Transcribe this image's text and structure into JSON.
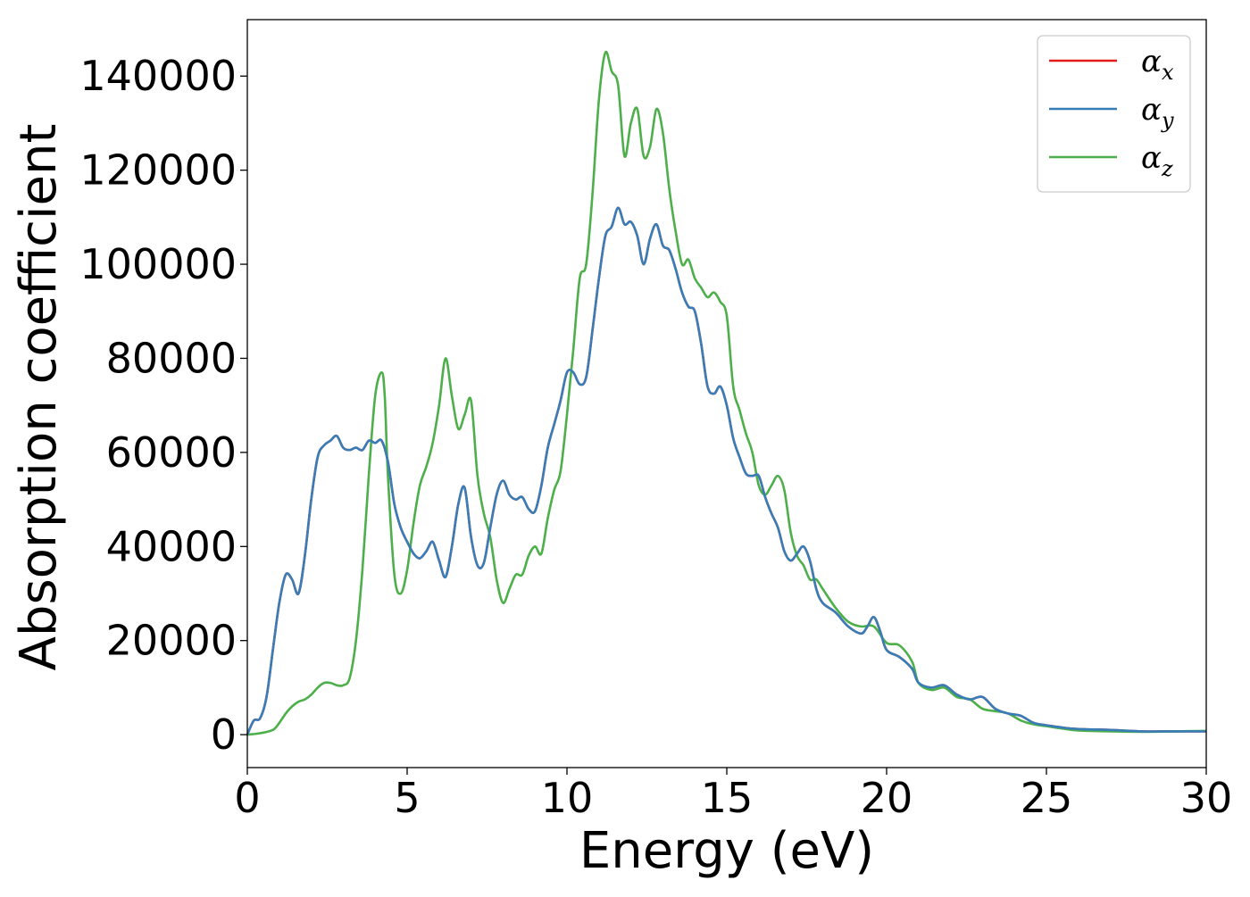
{
  "chart_data": {
    "type": "line",
    "xlabel": "Energy (eV)",
    "ylabel": "Absorption coefficient",
    "xlim": [
      0,
      30
    ],
    "ylim": [
      -7000,
      152000
    ],
    "xticks": [
      0,
      5,
      10,
      15,
      20,
      25,
      30
    ],
    "yticks": [
      0,
      20000,
      40000,
      60000,
      80000,
      100000,
      120000,
      140000
    ],
    "grid": false,
    "legend_position": "top-right",
    "series": [
      {
        "name": "αx",
        "symbol": "α",
        "subscript": "x",
        "color": "#e41a1c",
        "x": [
          0,
          0.2,
          0.4,
          0.6,
          0.8,
          1.0,
          1.2,
          1.4,
          1.6,
          1.8,
          2.0,
          2.2,
          2.4,
          2.6,
          2.8,
          3.0,
          3.2,
          3.4,
          3.6,
          3.8,
          4.0,
          4.2,
          4.4,
          4.6,
          4.8,
          5.0,
          5.2,
          5.4,
          5.6,
          5.8,
          6.0,
          6.2,
          6.4,
          6.6,
          6.8,
          7.0,
          7.2,
          7.4,
          7.6,
          7.8,
          8.0,
          8.2,
          8.4,
          8.6,
          8.8,
          9.0,
          9.2,
          9.4,
          9.6,
          9.8,
          10.0,
          10.2,
          10.4,
          10.6,
          10.8,
          11.0,
          11.2,
          11.4,
          11.6,
          11.8,
          12.0,
          12.2,
          12.4,
          12.6,
          12.8,
          13.0,
          13.2,
          13.4,
          13.6,
          13.8,
          14.0,
          14.2,
          14.4,
          14.6,
          14.8,
          15.0,
          15.2,
          15.4,
          15.6,
          15.8,
          16.0,
          16.2,
          16.4,
          16.6,
          16.8,
          17.0,
          17.2,
          17.4,
          17.6,
          17.8,
          18.0,
          18.4,
          18.8,
          19.2,
          19.4,
          19.6,
          19.8,
          20.0,
          20.4,
          20.8,
          21.0,
          21.4,
          21.8,
          22.2,
          22.6,
          23.0,
          23.4,
          23.8,
          24.2,
          24.6,
          25.0,
          25.5,
          26.0,
          27.0,
          28.0,
          29.0,
          30.0
        ],
        "values": [
          0,
          3000,
          3500,
          8000,
          18000,
          28000,
          34000,
          33000,
          30000,
          38000,
          50000,
          59000,
          61500,
          62500,
          63500,
          61000,
          60500,
          61000,
          60500,
          62500,
          62000,
          62500,
          58000,
          49000,
          44000,
          41000,
          38500,
          37500,
          39000,
          41000,
          37000,
          33500,
          40000,
          49000,
          52500,
          42000,
          36000,
          36500,
          44000,
          51000,
          54000,
          51000,
          50000,
          50500,
          48000,
          47500,
          53000,
          61000,
          66000,
          71000,
          77000,
          77000,
          74500,
          76000,
          86000,
          97000,
          106000,
          108000,
          112000,
          108500,
          109000,
          106000,
          100000,
          105500,
          108500,
          104000,
          103000,
          99000,
          94000,
          91000,
          90000,
          83000,
          74000,
          72500,
          74000,
          70000,
          63000,
          59000,
          55500,
          55000,
          55000,
          50500,
          47000,
          44000,
          39000,
          37000,
          38500,
          40000,
          37000,
          31000,
          28000,
          26000,
          23000,
          21500,
          23000,
          25000,
          22000,
          18000,
          16500,
          14000,
          11000,
          10000,
          10500,
          8500,
          7500,
          8000,
          5500,
          4500,
          4000,
          2500,
          2000,
          1500,
          1200,
          1000,
          700,
          700,
          700
        ]
      },
      {
        "name": "αy",
        "symbol": "α",
        "subscript": "y",
        "color": "#377eb8",
        "x": [
          0,
          0.2,
          0.4,
          0.6,
          0.8,
          1.0,
          1.2,
          1.4,
          1.6,
          1.8,
          2.0,
          2.2,
          2.4,
          2.6,
          2.8,
          3.0,
          3.2,
          3.4,
          3.6,
          3.8,
          4.0,
          4.2,
          4.4,
          4.6,
          4.8,
          5.0,
          5.2,
          5.4,
          5.6,
          5.8,
          6.0,
          6.2,
          6.4,
          6.6,
          6.8,
          7.0,
          7.2,
          7.4,
          7.6,
          7.8,
          8.0,
          8.2,
          8.4,
          8.6,
          8.8,
          9.0,
          9.2,
          9.4,
          9.6,
          9.8,
          10.0,
          10.2,
          10.4,
          10.6,
          10.8,
          11.0,
          11.2,
          11.4,
          11.6,
          11.8,
          12.0,
          12.2,
          12.4,
          12.6,
          12.8,
          13.0,
          13.2,
          13.4,
          13.6,
          13.8,
          14.0,
          14.2,
          14.4,
          14.6,
          14.8,
          15.0,
          15.2,
          15.4,
          15.6,
          15.8,
          16.0,
          16.2,
          16.4,
          16.6,
          16.8,
          17.0,
          17.2,
          17.4,
          17.6,
          17.8,
          18.0,
          18.4,
          18.8,
          19.2,
          19.4,
          19.6,
          19.8,
          20.0,
          20.4,
          20.8,
          21.0,
          21.4,
          21.8,
          22.2,
          22.6,
          23.0,
          23.4,
          23.8,
          24.2,
          24.6,
          25.0,
          25.5,
          26.0,
          27.0,
          28.0,
          29.0,
          30.0
        ],
        "values": [
          0,
          3000,
          3500,
          8000,
          18000,
          28000,
          34000,
          33000,
          30000,
          38000,
          50000,
          59000,
          61500,
          62500,
          63500,
          61000,
          60500,
          61000,
          60500,
          62500,
          62000,
          62500,
          58000,
          49000,
          44000,
          41000,
          38500,
          37500,
          39000,
          41000,
          37000,
          33500,
          40000,
          49000,
          52500,
          42000,
          36000,
          36500,
          44000,
          51000,
          54000,
          51000,
          50000,
          50500,
          48000,
          47500,
          53000,
          61000,
          66000,
          71000,
          77000,
          77000,
          74500,
          76000,
          86000,
          97000,
          106000,
          108000,
          112000,
          108500,
          109000,
          106000,
          100000,
          105500,
          108500,
          104000,
          103000,
          99000,
          94000,
          91000,
          90000,
          83000,
          74000,
          72500,
          74000,
          70000,
          63000,
          59000,
          55500,
          55000,
          55000,
          50500,
          47000,
          44000,
          39000,
          37000,
          38500,
          40000,
          37000,
          31000,
          28000,
          26000,
          23000,
          21500,
          23000,
          25000,
          22000,
          18000,
          16500,
          14000,
          11000,
          10000,
          10500,
          8500,
          7500,
          8000,
          5500,
          4500,
          4000,
          2500,
          2000,
          1500,
          1200,
          1000,
          700,
          700,
          700
        ]
      },
      {
        "name": "αz",
        "symbol": "α",
        "subscript": "z",
        "color": "#4daf4a",
        "x": [
          0,
          0.4,
          0.8,
          1.0,
          1.2,
          1.4,
          1.6,
          1.8,
          2.0,
          2.2,
          2.4,
          2.6,
          2.8,
          3.0,
          3.2,
          3.4,
          3.6,
          3.8,
          4.0,
          4.2,
          4.3,
          4.4,
          4.6,
          4.8,
          5.0,
          5.2,
          5.4,
          5.6,
          5.8,
          6.0,
          6.2,
          6.4,
          6.6,
          6.8,
          7.0,
          7.2,
          7.4,
          7.6,
          7.8,
          8.0,
          8.2,
          8.4,
          8.6,
          8.8,
          9.0,
          9.2,
          9.4,
          9.6,
          9.8,
          10.0,
          10.2,
          10.4,
          10.6,
          10.8,
          11.0,
          11.2,
          11.4,
          11.6,
          11.8,
          12.0,
          12.2,
          12.4,
          12.6,
          12.8,
          13.0,
          13.2,
          13.4,
          13.6,
          13.8,
          14.0,
          14.2,
          14.4,
          14.6,
          14.8,
          15.0,
          15.2,
          15.4,
          15.6,
          15.8,
          16.0,
          16.2,
          16.4,
          16.6,
          16.8,
          17.0,
          17.2,
          17.4,
          17.6,
          17.8,
          18.0,
          18.4,
          18.8,
          19.2,
          19.6,
          20.0,
          20.4,
          20.8,
          21.0,
          21.4,
          21.8,
          22.2,
          22.6,
          23.0,
          23.4,
          23.8,
          24.2,
          24.6,
          25.0,
          25.5,
          26.0,
          27.0,
          28.0,
          29.0,
          30.0
        ],
        "values": [
          0,
          300,
          1000,
          2500,
          4500,
          6000,
          7000,
          7500,
          8500,
          10000,
          11000,
          11000,
          10500,
          10500,
          12000,
          20000,
          35000,
          55000,
          72000,
          77000,
          72000,
          55000,
          34000,
          30000,
          35000,
          45000,
          53000,
          57000,
          62000,
          70000,
          80000,
          72000,
          65000,
          68000,
          71000,
          55000,
          47000,
          42000,
          33000,
          28000,
          31000,
          34000,
          34000,
          38000,
          40000,
          38500,
          46000,
          52000,
          56000,
          68000,
          82000,
          97000,
          100000,
          115000,
          135000,
          145000,
          141000,
          138000,
          123000,
          130000,
          133000,
          123000,
          125000,
          133000,
          128000,
          116000,
          107000,
          100000,
          101000,
          97000,
          95000,
          93000,
          94000,
          92000,
          89000,
          74000,
          69000,
          64000,
          60000,
          53000,
          51000,
          53000,
          55000,
          52000,
          43000,
          38000,
          36000,
          33000,
          33000,
          31000,
          27000,
          24000,
          23000,
          23000,
          19500,
          19000,
          15500,
          11000,
          9500,
          10000,
          8000,
          7500,
          5500,
          5000,
          4500,
          3000,
          2200,
          1800,
          1300,
          900,
          700,
          600,
          700,
          800
        ]
      }
    ]
  }
}
